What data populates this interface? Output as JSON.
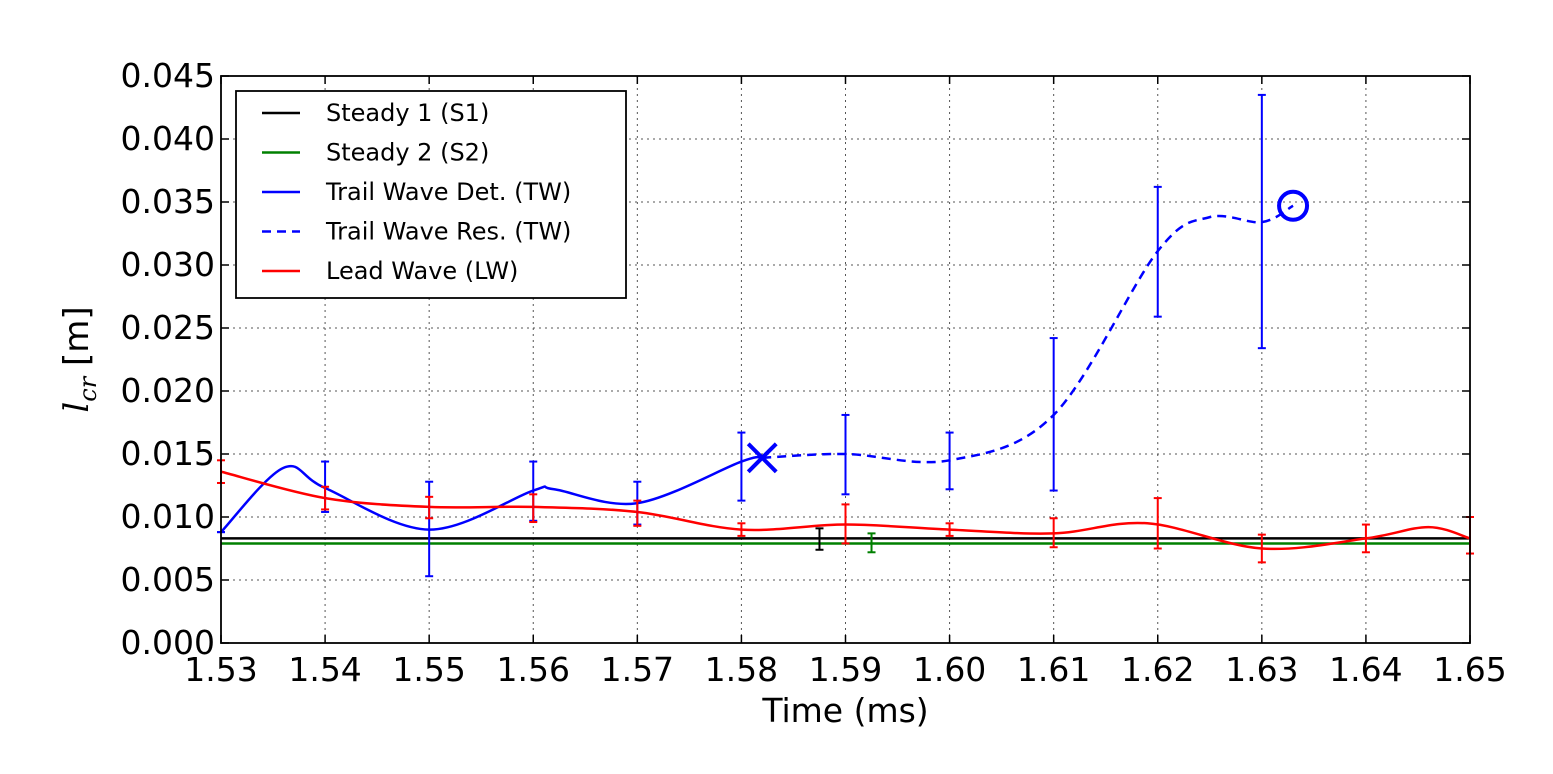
{
  "chart_data": {
    "type": "line",
    "title": "",
    "xlabel": "Time (ms)",
    "ylabel": "l",
    "ylabel_subscript": "cr",
    "ylabel_unit": " [m]",
    "xlim": [
      1.53,
      1.65
    ],
    "ylim": [
      0.0,
      0.045
    ],
    "xticks": [
      1.53,
      1.54,
      1.55,
      1.56,
      1.57,
      1.58,
      1.59,
      1.6,
      1.61,
      1.62,
      1.63,
      1.64,
      1.65
    ],
    "xtick_labels": [
      "1.53",
      "1.54",
      "1.55",
      "1.56",
      "1.57",
      "1.58",
      "1.59",
      "1.60",
      "1.61",
      "1.62",
      "1.63",
      "1.64",
      "1.65"
    ],
    "yticks": [
      0.0,
      0.005,
      0.01,
      0.015,
      0.02,
      0.025,
      0.03,
      0.035,
      0.04,
      0.045
    ],
    "ytick_labels": [
      "0.000",
      "0.005",
      "0.010",
      "0.015",
      "0.020",
      "0.025",
      "0.030",
      "0.035",
      "0.040",
      "0.045"
    ],
    "grid": true,
    "legend_position": "top-left",
    "series": [
      {
        "key": "s1",
        "name": "Steady 1 (S1)",
        "color": "#000000",
        "style": "solid",
        "kind": "hline",
        "value": 0.0083,
        "errorbar": {
          "x": 1.5875,
          "y": 0.0083,
          "lo": 0.0074,
          "hi": 0.0091
        }
      },
      {
        "key": "s2",
        "name": "Steady 2 (S2)",
        "color": "#008000",
        "style": "solid",
        "kind": "hline",
        "value": 0.0079,
        "errorbar": {
          "x": 1.5925,
          "y": 0.0079,
          "lo": 0.0072,
          "hi": 0.0087
        }
      },
      {
        "key": "tw_det",
        "name": "Trail Wave Det. (TW)",
        "color": "#0000ff",
        "style": "solid",
        "kind": "curve",
        "x": [
          1.53,
          1.536,
          1.54,
          1.55,
          1.56,
          1.562,
          1.57,
          1.58,
          1.582
        ],
        "y": [
          0.0088,
          0.0139,
          0.0123,
          0.009,
          0.0121,
          0.0122,
          0.0111,
          0.0144,
          0.0147
        ],
        "errorbars": [
          {
            "x": 1.53,
            "y": 0.0088,
            "lo": 0.0088,
            "hi": 0.0088
          },
          {
            "x": 1.54,
            "y": 0.0123,
            "lo": 0.0104,
            "hi": 0.0144
          },
          {
            "x": 1.55,
            "y": 0.009,
            "lo": 0.0053,
            "hi": 0.0128
          },
          {
            "x": 1.56,
            "y": 0.0121,
            "lo": 0.0097,
            "hi": 0.0144
          },
          {
            "x": 1.57,
            "y": 0.0111,
            "lo": 0.0094,
            "hi": 0.0128
          },
          {
            "x": 1.58,
            "y": 0.0144,
            "lo": 0.0113,
            "hi": 0.0167
          }
        ],
        "end_marker": {
          "x": 1.582,
          "y": 0.0147,
          "shape": "x"
        }
      },
      {
        "key": "tw_res",
        "name": "Trail Wave Res. (TW)",
        "color": "#0000ff",
        "style": "dashed",
        "kind": "curve",
        "x": [
          1.582,
          1.59,
          1.6,
          1.61,
          1.62,
          1.625,
          1.63,
          1.633
        ],
        "y": [
          0.0147,
          0.015,
          0.0145,
          0.0181,
          0.0311,
          0.0338,
          0.0334,
          0.0347
        ],
        "errorbars": [
          {
            "x": 1.59,
            "y": 0.015,
            "lo": 0.0118,
            "hi": 0.0181
          },
          {
            "x": 1.6,
            "y": 0.0145,
            "lo": 0.0122,
            "hi": 0.0167
          },
          {
            "x": 1.61,
            "y": 0.0181,
            "lo": 0.0121,
            "hi": 0.0242
          },
          {
            "x": 1.62,
            "y": 0.0311,
            "lo": 0.0259,
            "hi": 0.0362
          },
          {
            "x": 1.63,
            "y": 0.0334,
            "lo": 0.0234,
            "hi": 0.0435
          }
        ],
        "end_marker": {
          "x": 1.633,
          "y": 0.0347,
          "shape": "circle"
        }
      },
      {
        "key": "lw",
        "name": "Lead Wave (LW)",
        "color": "#ff0000",
        "style": "solid",
        "kind": "curve",
        "x": [
          1.53,
          1.54,
          1.55,
          1.56,
          1.57,
          1.58,
          1.59,
          1.6,
          1.61,
          1.619,
          1.63,
          1.64,
          1.646,
          1.65
        ],
        "y": [
          0.0136,
          0.0115,
          0.0108,
          0.0108,
          0.0104,
          0.009,
          0.0094,
          0.009,
          0.0087,
          0.0095,
          0.0075,
          0.0083,
          0.0092,
          0.0083
        ],
        "errorbars": [
          {
            "x": 1.53,
            "y": 0.0136,
            "lo": 0.0127,
            "hi": 0.0145
          },
          {
            "x": 1.54,
            "y": 0.0115,
            "lo": 0.0106,
            "hi": 0.0124
          },
          {
            "x": 1.55,
            "y": 0.0108,
            "lo": 0.0099,
            "hi": 0.0116
          },
          {
            "x": 1.56,
            "y": 0.0108,
            "lo": 0.0096,
            "hi": 0.0118
          },
          {
            "x": 1.57,
            "y": 0.0104,
            "lo": 0.0093,
            "hi": 0.0113
          },
          {
            "x": 1.58,
            "y": 0.009,
            "lo": 0.0085,
            "hi": 0.0095
          },
          {
            "x": 1.59,
            "y": 0.0094,
            "lo": 0.0079,
            "hi": 0.011
          },
          {
            "x": 1.6,
            "y": 0.009,
            "lo": 0.0085,
            "hi": 0.0095
          },
          {
            "x": 1.61,
            "y": 0.0087,
            "lo": 0.0076,
            "hi": 0.0099
          },
          {
            "x": 1.62,
            "y": 0.0095,
            "lo": 0.0075,
            "hi": 0.0115
          },
          {
            "x": 1.63,
            "y": 0.0075,
            "lo": 0.0064,
            "hi": 0.0086
          },
          {
            "x": 1.64,
            "y": 0.0083,
            "lo": 0.0072,
            "hi": 0.0094
          },
          {
            "x": 1.65,
            "y": 0.0083,
            "lo": 0.0071,
            "hi": 0.01
          }
        ]
      }
    ]
  }
}
